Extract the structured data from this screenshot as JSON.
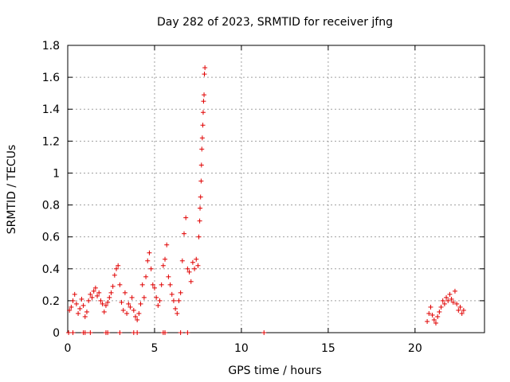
{
  "chart_data": {
    "type": "scatter",
    "title": "Day 282 of 2023, SRMTID for receiver jfng",
    "xlabel": "GPS time / hours",
    "ylabel": "SRMTID / TECUs",
    "xlim": [
      0,
      24
    ],
    "ylim": [
      0,
      1.8
    ],
    "xticks": [
      0,
      5,
      10,
      15,
      20
    ],
    "xtick_labels": [
      "0",
      "5",
      "10",
      "15",
      "20"
    ],
    "yticks": [
      0,
      0.2,
      0.4,
      0.6,
      0.8,
      1.0,
      1.2,
      1.4,
      1.6,
      1.8
    ],
    "ytick_labels": [
      "0",
      "0.2",
      "0.4",
      "0.6",
      "0.8",
      "1",
      "1.2",
      "1.4",
      "1.6",
      "1.8"
    ],
    "grid": true,
    "marker": "+",
    "marker_color": "#e00000",
    "series": [
      {
        "name": "SRMTID",
        "x": [
          0.1,
          0.2,
          0.3,
          0.4,
          0.5,
          0.6,
          0.7,
          0.8,
          0.9,
          1.0,
          1.1,
          1.2,
          1.3,
          1.4,
          1.5,
          1.6,
          1.7,
          1.8,
          1.9,
          2.0,
          2.1,
          2.2,
          2.3,
          2.4,
          2.5,
          2.6,
          2.7,
          2.8,
          2.9,
          3.0,
          3.1,
          3.2,
          3.3,
          3.4,
          3.5,
          3.6,
          3.7,
          3.8,
          3.9,
          4.0,
          4.1,
          4.2,
          4.3,
          4.4,
          4.5,
          4.6,
          4.7,
          4.8,
          4.9,
          5.0,
          5.1,
          5.2,
          5.3,
          5.4,
          5.5,
          5.6,
          5.7,
          5.8,
          5.9,
          6.0,
          6.1,
          6.2,
          6.3,
          6.4,
          6.5,
          6.6,
          6.7,
          6.8,
          6.9,
          7.0,
          7.1,
          7.2,
          7.3,
          7.4,
          7.5,
          7.55,
          7.6,
          7.62,
          7.65,
          7.68,
          7.7,
          7.72,
          7.75,
          7.78,
          7.8,
          7.82,
          7.85,
          7.87,
          7.9,
          0.05,
          0.3,
          0.9,
          1.0,
          1.3,
          2.2,
          2.3,
          3.0,
          3.8,
          4.0,
          5.5,
          5.6,
          6.5,
          6.9,
          11.3,
          20.7,
          20.8,
          20.9,
          21.0,
          21.1,
          21.2,
          21.3,
          21.4,
          21.5,
          21.6,
          21.7,
          21.8,
          21.9,
          22.0,
          22.1,
          22.2,
          22.3,
          22.4,
          22.5,
          22.6,
          22.7,
          22.8
        ],
        "y": [
          0.14,
          0.16,
          0.2,
          0.24,
          0.18,
          0.12,
          0.15,
          0.21,
          0.17,
          0.1,
          0.13,
          0.2,
          0.24,
          0.22,
          0.26,
          0.28,
          0.23,
          0.25,
          0.2,
          0.18,
          0.13,
          0.17,
          0.19,
          0.22,
          0.25,
          0.29,
          0.36,
          0.4,
          0.42,
          0.3,
          0.19,
          0.14,
          0.25,
          0.12,
          0.18,
          0.16,
          0.22,
          0.14,
          0.1,
          0.08,
          0.12,
          0.18,
          0.3,
          0.22,
          0.35,
          0.45,
          0.5,
          0.4,
          0.3,
          0.28,
          0.22,
          0.17,
          0.2,
          0.3,
          0.42,
          0.46,
          0.55,
          0.35,
          0.3,
          0.24,
          0.2,
          0.15,
          0.12,
          0.2,
          0.25,
          0.45,
          0.62,
          0.72,
          0.4,
          0.38,
          0.32,
          0.44,
          0.4,
          0.46,
          0.42,
          0.6,
          0.7,
          0.78,
          0.85,
          0.95,
          1.05,
          1.15,
          1.22,
          1.3,
          1.38,
          1.45,
          1.49,
          1.62,
          1.66,
          0,
          0,
          0,
          0,
          0,
          0,
          0,
          0,
          0,
          0,
          0,
          0,
          0,
          0,
          0,
          0.07,
          0.12,
          0.16,
          0.11,
          0.08,
          0.06,
          0.1,
          0.13,
          0.16,
          0.2,
          0.18,
          0.22,
          0.2,
          0.24,
          0.21,
          0.19,
          0.26,
          0.18,
          0.14,
          0.16,
          0.12,
          0.14
        ]
      }
    ]
  }
}
